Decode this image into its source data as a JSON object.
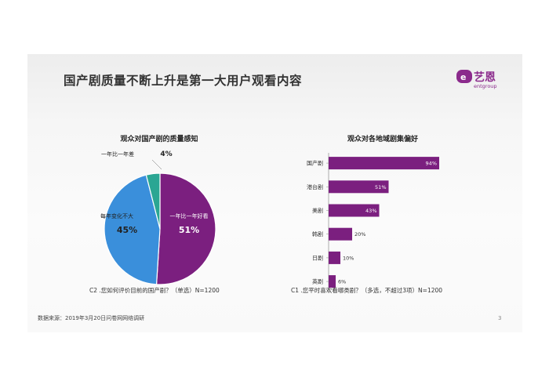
{
  "slide": {
    "title": "国产剧质量不断上升是第一大用户观看内容",
    "source": "数据来源：2019年3月20日问卷网网络调研",
    "page_number": "3",
    "logo": {
      "text": "艺恩",
      "sub": "entgroup",
      "color": "#8b2a8c"
    }
  },
  "chart_data": [
    {
      "type": "pie",
      "title": "观众对国产剧的质量感知",
      "question": "C2 .您如何评价目前的国产剧？（单选）N=1200",
      "slices": [
        {
          "label": "一年比一年好看",
          "value": 51,
          "value_label": "51%",
          "color": "#7b1f7f"
        },
        {
          "label": "每年变化不大",
          "value": 45,
          "value_label": "45%",
          "color": "#3a8fdb"
        },
        {
          "label": "一年比一年差",
          "value": 4,
          "value_label": "4%",
          "color": "#2aa693"
        }
      ]
    },
    {
      "type": "bar",
      "orientation": "horizontal",
      "title": "观众对各地域剧集偏好",
      "question": "C1 .您平时喜欢看哪类剧？（多选，不超过3项）N=1200",
      "categories": [
        "国产剧",
        "港台剧",
        "美剧",
        "韩剧",
        "日剧",
        "英剧"
      ],
      "values": [
        94,
        51,
        43,
        20,
        10,
        6
      ],
      "value_labels": [
        "94%",
        "51%",
        "43%",
        "20%",
        "10%",
        "6%"
      ],
      "xlim": [
        0,
        100
      ],
      "color": "#7b1f7f"
    }
  ]
}
